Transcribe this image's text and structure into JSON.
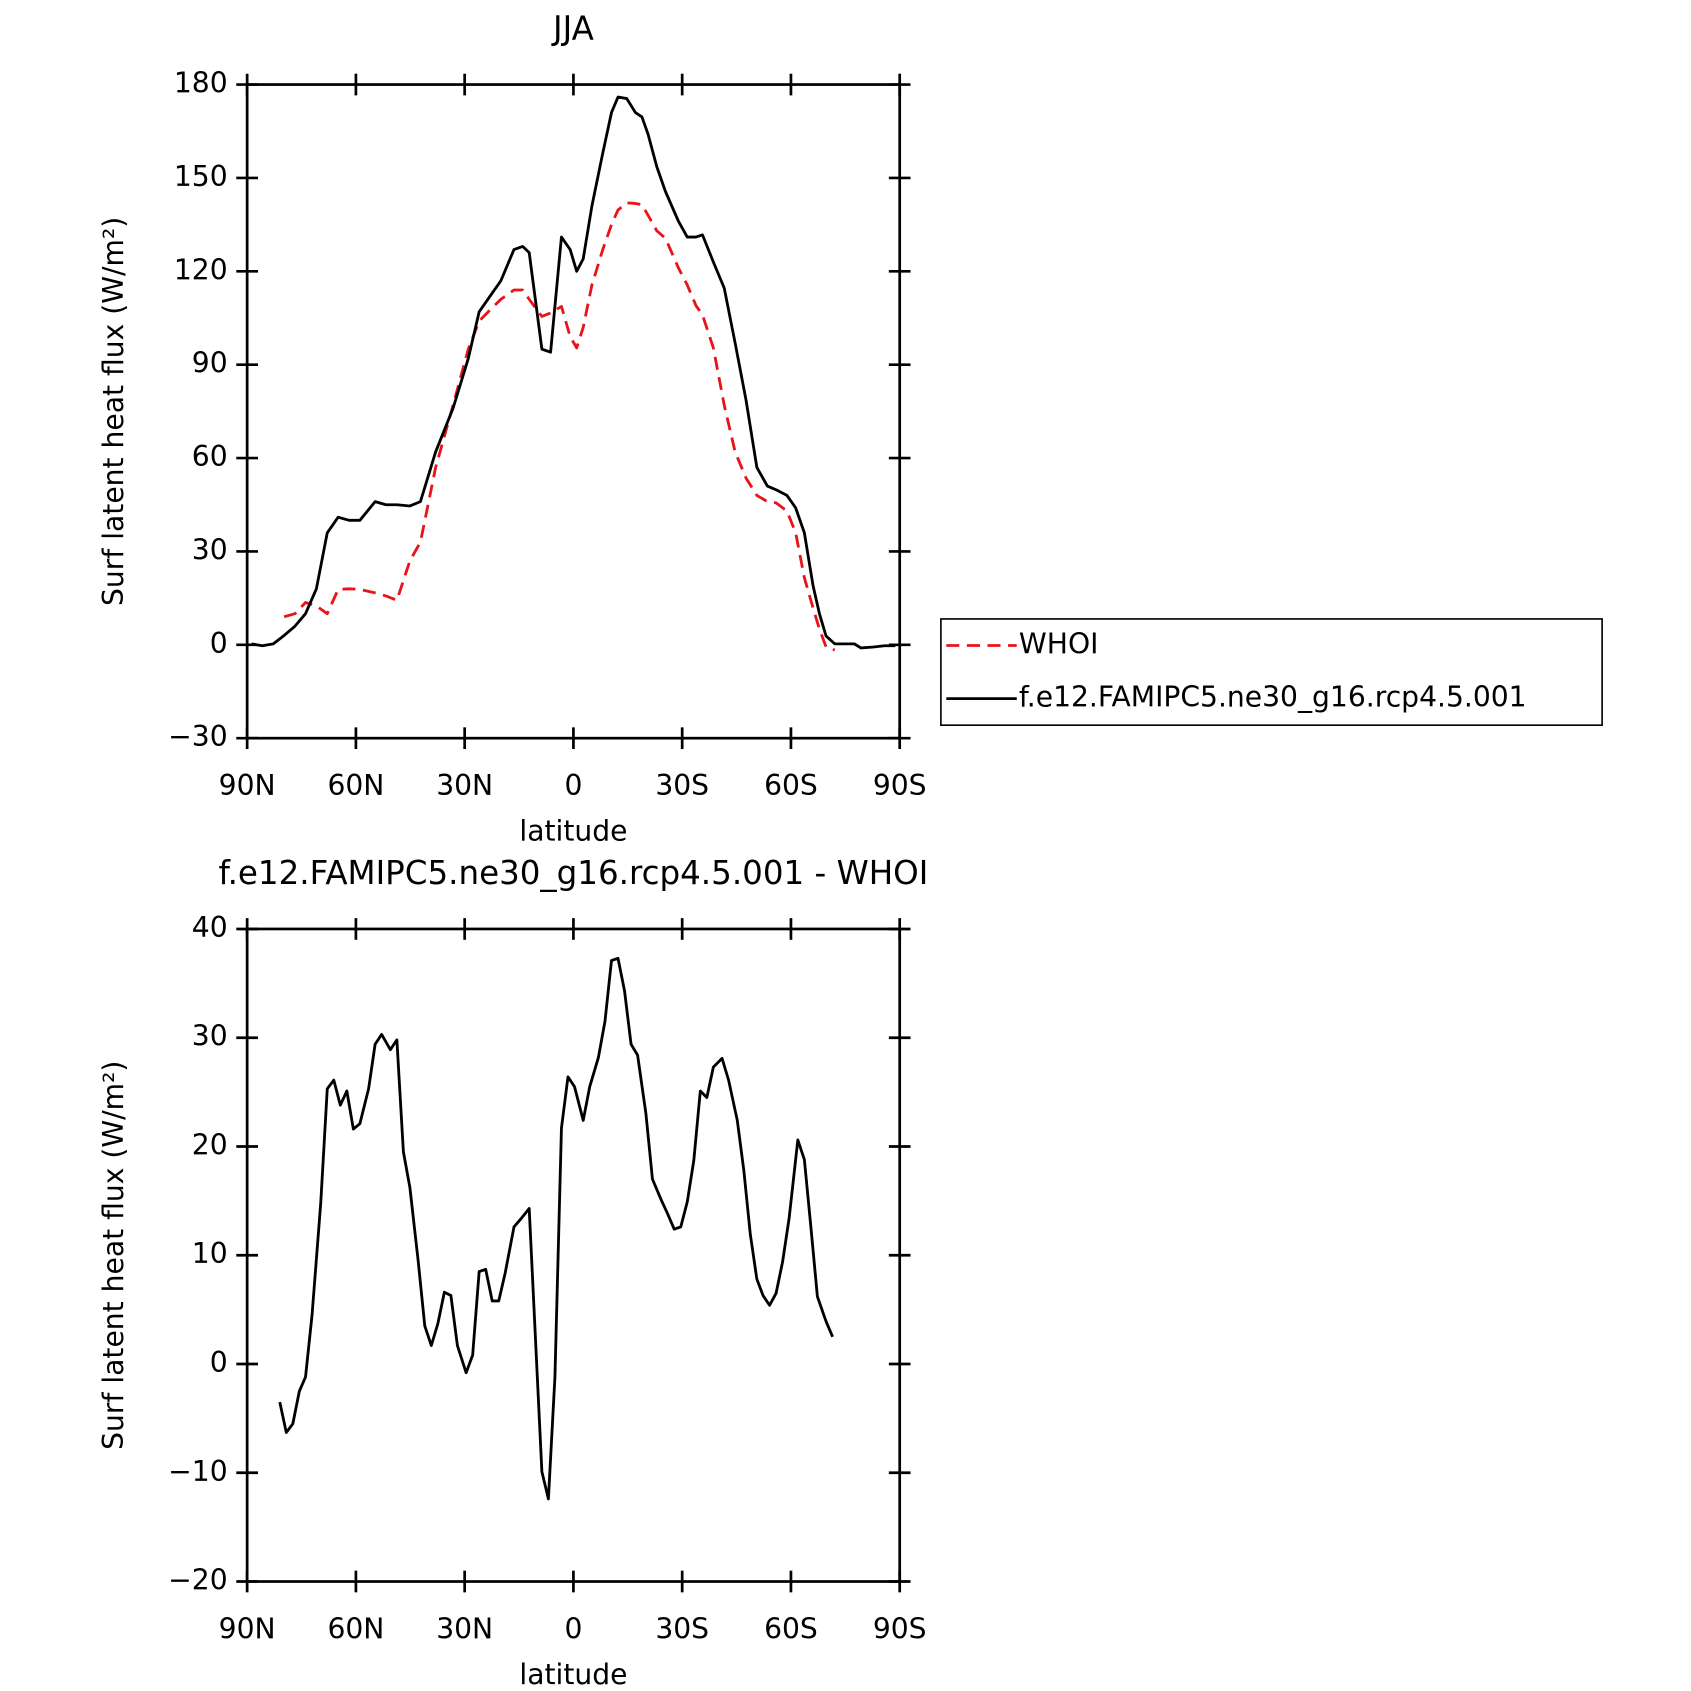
{
  "chart_data": [
    {
      "type": "line",
      "title": "JJA",
      "xlabel": "latitude",
      "ylabel": "Surf latent heat flux (W/m²)",
      "x": [
        88.8,
        85.8,
        82.8,
        79.8,
        76.8,
        73.9,
        70.9,
        67.9,
        64.9,
        61.9,
        58.9,
        54.7,
        51.7,
        48.7,
        45.1,
        42.2,
        38.0,
        33.2,
        29.0,
        26.0,
        23.0,
        20.0,
        16.4,
        14.0,
        12.2,
        8.7,
        6.3,
        3.3,
        0.9,
        -0.9,
        -2.7,
        -5.1,
        -8.1,
        -10.5,
        -12.3,
        -14.7,
        -17.1,
        -18.9,
        -20.6,
        -23.0,
        -25.4,
        -29.0,
        -31.4,
        -33.8,
        -35.6,
        -38.6,
        -41.6,
        -44.6,
        -47.6,
        -50.6,
        -53.5,
        -55.9,
        -58.9,
        -61.3,
        -63.7,
        -66.1,
        -67.9,
        -69.7,
        -72.1,
        -75.1,
        -77.5,
        -79.3,
        -82.8,
        -85.8,
        -88.8
      ],
      "series": [
        {
          "name": "WHOI",
          "color": "#e8141a",
          "dashed": true,
          "values": [
            null,
            null,
            null,
            9,
            10,
            13.6,
            12.5,
            10,
            17.8,
            18,
            17.8,
            16.7,
            15.7,
            14.3,
            27,
            33,
            57,
            77,
            95,
            104,
            107.6,
            111,
            114,
            114,
            111,
            105.5,
            106.6,
            108.7,
            99,
            95.4,
            102,
            115.6,
            127,
            135,
            139.7,
            142,
            141.8,
            141.4,
            138,
            133,
            130.6,
            121,
            115.6,
            109,
            106,
            95.4,
            77,
            62,
            53.6,
            48,
            46,
            45.6,
            43,
            36,
            21.6,
            11.8,
            4.9,
            -0.7,
            -1.7,
            null,
            null,
            null,
            null,
            null,
            null
          ]
        },
        {
          "name": "f.e12.FAMIPC5.ne30_g16.rcp4.5.001",
          "color": "#000000",
          "dashed": false,
          "values": [
            0.3,
            -0.3,
            0.3,
            3,
            6,
            10,
            18,
            36,
            41,
            40,
            40,
            46,
            45,
            45,
            44.6,
            46,
            62,
            76,
            92,
            107,
            112,
            117,
            127,
            128,
            126,
            95,
            94,
            131,
            127,
            120,
            124,
            141,
            158,
            171,
            176,
            175.5,
            171,
            169.6,
            164,
            153.6,
            145.6,
            136,
            131,
            131,
            131.7,
            123,
            114.6,
            97,
            78.7,
            57,
            51,
            49.8,
            48,
            44,
            36,
            19,
            9.8,
            2.8,
            0.3,
            0.3,
            0.3,
            -1,
            -0.7,
            -0.3,
            -0.3
          ]
        }
      ],
      "xlim": [
        90,
        -90
      ],
      "xticks": [
        {
          "value": 90,
          "label": "90N"
        },
        {
          "value": 60,
          "label": "60N"
        },
        {
          "value": 30,
          "label": "30N"
        },
        0,
        {
          "value": -30,
          "label": "30S"
        },
        {
          "value": -60,
          "label": "60S"
        },
        {
          "value": -90,
          "label": "90S"
        }
      ],
      "ylim": [
        -30,
        180
      ],
      "yticks": [
        {
          "value": -30,
          "label": "−30"
        },
        0,
        30,
        60,
        90,
        120,
        150,
        180
      ],
      "legend": "right"
    },
    {
      "type": "line",
      "title": "f.e12.FAMIPC5.ne30_g16.rcp4.5.001 - WHOI",
      "xlabel": "latitude",
      "ylabel": "Surf latent heat flux (W/m²)",
      "x": [
        81.0,
        79.2,
        77.4,
        75.6,
        73.9,
        72.1,
        69.7,
        67.9,
        66.1,
        64.3,
        62.5,
        60.7,
        58.9,
        56.5,
        54.7,
        52.9,
        50.5,
        48.7,
        46.9,
        45.1,
        42.8,
        41.0,
        39.2,
        37.4,
        35.6,
        33.8,
        32.0,
        29.6,
        27.8,
        26.0,
        24.2,
        22.4,
        20.6,
        18.8,
        16.4,
        14.6,
        12.2,
        8.7,
        6.9,
        5.1,
        3.3,
        1.5,
        -0.3,
        -2.7,
        -4.5,
        -6.9,
        -8.7,
        -10.5,
        -12.3,
        -14.1,
        -15.9,
        -17.7,
        -20.0,
        -21.8,
        -24.2,
        -26.0,
        -27.8,
        -29.6,
        -31.4,
        -33.2,
        -35.0,
        -36.8,
        -38.6,
        -41.0,
        -42.8,
        -45.2,
        -47.0,
        -48.8,
        -50.6,
        -52.3,
        -54.1,
        -55.9,
        -57.7,
        -59.5,
        -61.9,
        -63.7,
        -65.5,
        -67.3,
        -69.7,
        -71.5
      ],
      "series": [
        {
          "color": "#000000",
          "values": [
            -3.5,
            -6.3,
            -5.5,
            -2.5,
            -1.2,
            4.5,
            14.8,
            25.3,
            26.1,
            23.8,
            25.1,
            21.6,
            22.1,
            25.3,
            29.4,
            30.3,
            28.9,
            29.8,
            19.5,
            16.2,
            9.4,
            3.5,
            1.7,
            3.7,
            6.6,
            6.3,
            1.7,
            -0.8,
            0.8,
            8.5,
            8.7,
            5.8,
            5.8,
            8.4,
            12.6,
            13.3,
            14.3,
            -9.9,
            -12.4,
            -1.2,
            21.7,
            26.4,
            25.5,
            22.4,
            25.5,
            28.2,
            31.5,
            37.1,
            37.3,
            34.3,
            29.4,
            28.4,
            23,
            17,
            15.1,
            13.8,
            12.4,
            12.6,
            14.9,
            18.7,
            25.1,
            24.5,
            27.3,
            28.1,
            26.1,
            22.4,
            17.8,
            11.9,
            7.8,
            6.3,
            5.4,
            6.5,
            9.4,
            13.4,
            20.6,
            18.8,
            12.6,
            6.2,
            3.9,
            2.5
          ]
        }
      ],
      "xlim": [
        90,
        -90
      ],
      "xticks": [
        {
          "value": 90,
          "label": "90N"
        },
        {
          "value": 60,
          "label": "60N"
        },
        {
          "value": 30,
          "label": "30N"
        },
        0,
        {
          "value": -30,
          "label": "30S"
        },
        {
          "value": -60,
          "label": "60S"
        },
        {
          "value": -90,
          "label": "90S"
        }
      ],
      "ylim": [
        -20,
        40
      ],
      "yticks": [
        {
          "value": -20,
          "label": "−20"
        },
        {
          "value": -10,
          "label": "−10"
        },
        0,
        10,
        20,
        30,
        40
      ]
    }
  ]
}
